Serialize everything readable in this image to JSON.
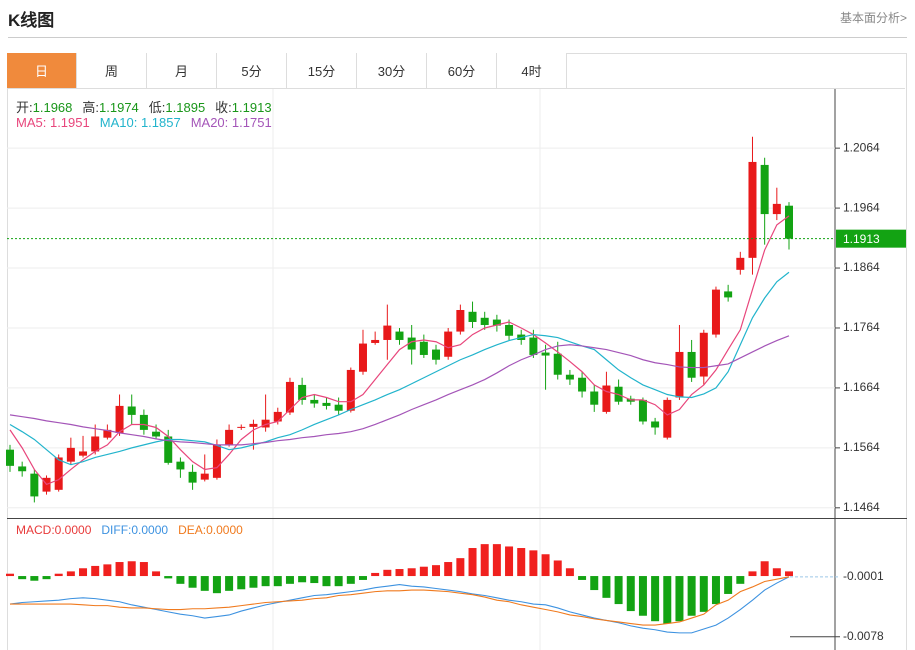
{
  "header": {
    "title": "K线图",
    "link": "基本面分析>"
  },
  "tabs": [
    "日",
    "周",
    "月",
    "5分",
    "15分",
    "30分",
    "60分",
    "4时"
  ],
  "active_tab": 0,
  "chart_data": [
    {
      "type": "candlestick",
      "up_color": "#e8191a",
      "down_color": "#13a313",
      "ylim": [
        1.1447,
        1.2161
      ],
      "yticks": [
        1.2064,
        1.1964,
        1.1864,
        1.1764,
        1.1664,
        1.1564,
        1.1464
      ],
      "grid": true,
      "ohlc_labels": [
        "开:",
        "高:",
        "低:",
        "收:"
      ],
      "info_value_color": "#1a961a",
      "last_price_color": "#13a313",
      "open": [
        1.1561,
        1.1533,
        1.1521,
        1.1491,
        1.1494,
        1.1541,
        1.1551,
        1.1558,
        1.1581,
        1.1589,
        1.1633,
        1.1619,
        1.1591,
        1.1583,
        1.1541,
        1.1524,
        1.1511,
        1.1514,
        1.1569,
        1.1598,
        1.1599,
        1.1598,
        1.1608,
        1.1623,
        1.1669,
        1.1644,
        1.1639,
        1.1636,
        1.1626,
        1.1691,
        1.1739,
        1.1744,
        1.1758,
        1.1748,
        1.1741,
        1.1728,
        1.1716,
        1.1758,
        1.1791,
        1.1781,
        1.1778,
        1.1769,
        1.1753,
        1.1748,
        1.1723,
        1.1721,
        1.1686,
        1.1681,
        1.1658,
        1.1624,
        1.1666,
        1.1646,
        1.1644,
        1.1608,
        1.1581,
        1.1648,
        1.1724,
        1.1683,
        1.1753,
        1.1825,
        1.1861,
        1.1881,
        1.2036,
        1.1954,
        1.1968
      ],
      "high": [
        1.1569,
        1.1541,
        1.1528,
        1.1518,
        1.1553,
        1.1581,
        1.1584,
        1.1603,
        1.1603,
        1.1653,
        1.1653,
        1.1628,
        1.1603,
        1.1594,
        1.1548,
        1.1536,
        1.1553,
        1.1578,
        1.1603,
        1.1603,
        1.1611,
        1.1653,
        1.1631,
        1.1681,
        1.1681,
        1.1653,
        1.1648,
        1.1648,
        1.1698,
        1.1761,
        1.1758,
        1.1803,
        1.1764,
        1.1769,
        1.1753,
        1.1736,
        1.1764,
        1.1803,
        1.1808,
        1.1791,
        1.1786,
        1.1778,
        1.1761,
        1.1761,
        1.1736,
        1.1741,
        1.1694,
        1.1691,
        1.1669,
        1.1691,
        1.1678,
        1.1651,
        1.1648,
        1.1614,
        1.1648,
        1.1769,
        1.1744,
        1.1761,
        1.1833,
        1.1836,
        1.1891,
        1.2083,
        1.2048,
        1.1998,
        1.1974
      ],
      "low": [
        1.1524,
        1.1516,
        1.1473,
        1.1486,
        1.1491,
        1.1536,
        1.1548,
        1.1553,
        1.1578,
        1.1584,
        1.1603,
        1.1586,
        1.1578,
        1.1536,
        1.1514,
        1.1494,
        1.1508,
        1.1511,
        1.1566,
        1.1594,
        1.1561,
        1.1591,
        1.1603,
        1.1619,
        1.1636,
        1.1631,
        1.1628,
        1.1619,
        1.1623,
        1.1686,
        1.1736,
        1.1711,
        1.1736,
        1.1703,
        1.1714,
        1.1703,
        1.1711,
        1.1753,
        1.1764,
        1.1761,
        1.1758,
        1.1744,
        1.1736,
        1.1714,
        1.1661,
        1.1678,
        1.1669,
        1.1648,
        1.1624,
        1.1621,
        1.1636,
        1.1636,
        1.1603,
        1.1586,
        1.1578,
        1.1644,
        1.1674,
        1.1669,
        1.1748,
        1.1808,
        1.1853,
        1.1853,
        1.1903,
        1.1944,
        1.1895
      ],
      "close": [
        1.1534,
        1.1525,
        1.1483,
        1.1514,
        1.1548,
        1.1564,
        1.1558,
        1.1583,
        1.1594,
        1.1634,
        1.1619,
        1.1594,
        1.1583,
        1.1539,
        1.1528,
        1.1506,
        1.1521,
        1.1569,
        1.1594,
        1.1599,
        1.1604,
        1.1611,
        1.1624,
        1.1674,
        1.1644,
        1.1638,
        1.1634,
        1.1626,
        1.1694,
        1.1738,
        1.1744,
        1.1768,
        1.1744,
        1.1728,
        1.1719,
        1.1711,
        1.1758,
        1.1794,
        1.1774,
        1.1769,
        1.1768,
        1.1751,
        1.1744,
        1.1719,
        1.1718,
        1.1686,
        1.1678,
        1.1658,
        1.1636,
        1.1668,
        1.1641,
        1.1641,
        1.1608,
        1.1598,
        1.1644,
        1.1724,
        1.1681,
        1.1756,
        1.1828,
        1.1815,
        1.1881,
        1.2041,
        1.1954,
        1.1971,
        1.1913
      ],
      "series": [
        {
          "name": "MA5:",
          "color": "#e8467c",
          "values": [
            1.1594,
            1.1564,
            1.1528,
            1.1503,
            1.1511,
            1.1528,
            1.1544,
            1.1558,
            1.1569,
            1.1591,
            1.1603,
            1.1603,
            1.1598,
            1.1583,
            1.1561,
            1.1541,
            1.1528,
            1.1531,
            1.1553,
            1.1578,
            1.1594,
            1.1603,
            1.1608,
            1.1628,
            1.1648,
            1.1653,
            1.1648,
            1.1641,
            1.1641,
            1.1653,
            1.1678,
            1.1703,
            1.1728,
            1.1741,
            1.1744,
            1.1741,
            1.1731,
            1.1736,
            1.1753,
            1.1764,
            1.1769,
            1.1774,
            1.1764,
            1.1753,
            1.1739,
            1.1724,
            1.1708,
            1.1691,
            1.1669,
            1.1658,
            1.1653,
            1.1644,
            1.1644,
            1.1636,
            1.1619,
            1.1628,
            1.1653,
            1.1669,
            1.1694,
            1.1728,
            1.1761,
            1.1828,
            1.1894,
            1.1936,
            1.1951
          ]
        },
        {
          "name": "MA10:",
          "color": "#22b4cc",
          "values": [
            1.1603,
            1.1591,
            1.1578,
            1.1561,
            1.1544,
            1.1536,
            1.1541,
            1.1548,
            1.1553,
            1.1558,
            1.1564,
            1.1569,
            1.1574,
            1.1578,
            1.1578,
            1.1576,
            1.1574,
            1.1568,
            1.1561,
            1.1564,
            1.1569,
            1.1574,
            1.1581,
            1.1586,
            1.1594,
            1.1603,
            1.1611,
            1.1619,
            1.1628,
            1.1636,
            1.1644,
            1.1653,
            1.1661,
            1.1671,
            1.1681,
            1.1691,
            1.1701,
            1.1711,
            1.1719,
            1.1728,
            1.1736,
            1.1743,
            1.1748,
            1.1753,
            1.1751,
            1.1748,
            1.1741,
            1.1734,
            1.1728,
            1.1711,
            1.1694,
            1.1681,
            1.1669,
            1.1661,
            1.1653,
            1.1649,
            1.1648,
            1.1654,
            1.1664,
            1.1691,
            1.1736,
            1.1781,
            1.1814,
            1.1841,
            1.1857
          ]
        },
        {
          "name": "MA20:",
          "color": "#a455b8",
          "values": [
            1.1619,
            1.1616,
            1.1613,
            1.1609,
            1.1606,
            1.1603,
            1.1599,
            1.1596,
            1.1593,
            1.1589,
            1.1586,
            1.1583,
            1.1579,
            1.1576,
            1.1574,
            1.1573,
            1.1571,
            1.1569,
            1.1569,
            1.1569,
            1.1571,
            1.1573,
            1.1576,
            1.1578,
            1.1581,
            1.1583,
            1.1586,
            1.1588,
            1.1591,
            1.1596,
            1.1603,
            1.1611,
            1.1619,
            1.1628,
            1.1636,
            1.1644,
            1.1653,
            1.1661,
            1.1669,
            1.1678,
            1.1689,
            1.1701,
            1.1711,
            1.1719,
            1.1728,
            1.1734,
            1.1736,
            1.1734,
            1.1731,
            1.1728,
            1.1723,
            1.1718,
            1.1711,
            1.1706,
            1.1703,
            1.1699,
            1.1698,
            1.1698,
            1.1701,
            1.1704,
            1.1714,
            1.1724,
            1.1734,
            1.1743,
            1.1751
          ]
        }
      ]
    },
    {
      "type": "macd",
      "ylim": [
        -0.0095,
        0.0072
      ],
      "yticks": [
        -0.0001,
        -0.0078
      ],
      "up_color": "#f0201e",
      "down_color": "#13a313",
      "histogram": {
        "name": "MACD:",
        "color": "#e83a3a",
        "legend_value": 0,
        "legend_value_label": "0.0000",
        "values": [
          0.0003,
          -0.0004,
          -0.0006,
          -0.0004,
          0.0003,
          0.0006,
          0.001,
          0.0013,
          0.0015,
          0.0018,
          0.0019,
          0.0018,
          0.0006,
          -0.0003,
          -0.001,
          -0.0015,
          -0.0019,
          -0.0022,
          -0.0019,
          -0.0017,
          -0.0015,
          -0.0013,
          -0.0013,
          -0.001,
          -0.0008,
          -0.0009,
          -0.0013,
          -0.0013,
          -0.001,
          -0.0005,
          0.0004,
          0.0008,
          0.0009,
          0.001,
          0.0012,
          0.0014,
          0.0018,
          0.0023,
          0.0036,
          0.0041,
          0.0041,
          0.0038,
          0.0036,
          0.0033,
          0.0028,
          0.002,
          0.001,
          -0.0005,
          -0.0018,
          -0.0028,
          -0.0036,
          -0.0045,
          -0.0051,
          -0.0058,
          -0.0061,
          -0.0058,
          -0.0051,
          -0.0046,
          -0.0036,
          -0.0023,
          -0.001,
          0.0006,
          0.0019,
          0.001,
          0.0006
        ]
      },
      "series": [
        {
          "name": "DIFF:",
          "color": "#3d92e0",
          "legend_value": 0,
          "legend_value_label": "0.0000",
          "values": [
            -0.0036,
            -0.0034,
            -0.0033,
            -0.0032,
            -0.0031,
            -0.0029,
            -0.0028,
            -0.0029,
            -0.0031,
            -0.0033,
            -0.0037,
            -0.004,
            -0.0043,
            -0.0046,
            -0.0049,
            -0.0051,
            -0.0054,
            -0.0052,
            -0.005,
            -0.0045,
            -0.0041,
            -0.0037,
            -0.0034,
            -0.0031,
            -0.0028,
            -0.0025,
            -0.0024,
            -0.0022,
            -0.002,
            -0.0018,
            -0.0015,
            -0.0013,
            -0.0011,
            -0.0013,
            -0.0014,
            -0.0016,
            -0.0018,
            -0.002,
            -0.0023,
            -0.0025,
            -0.0028,
            -0.0031,
            -0.0033,
            -0.0036,
            -0.0037,
            -0.0041,
            -0.0046,
            -0.005,
            -0.0054,
            -0.0057,
            -0.006,
            -0.0064,
            -0.0067,
            -0.0069,
            -0.0072,
            -0.0073,
            -0.0073,
            -0.0068,
            -0.0063,
            -0.0054,
            -0.0043,
            -0.0031,
            -0.0018,
            -0.0009,
            -0.0001
          ]
        },
        {
          "name": "DEA:",
          "color": "#f07a1e",
          "legend_value": 0,
          "legend_value_label": "0.0000",
          "values": [
            -0.0036,
            -0.0036,
            -0.0036,
            -0.0036,
            -0.0036,
            -0.0036,
            -0.0037,
            -0.0038,
            -0.0038,
            -0.004,
            -0.0041,
            -0.0041,
            -0.0042,
            -0.0043,
            -0.0043,
            -0.0042,
            -0.0042,
            -0.0041,
            -0.004,
            -0.0038,
            -0.0036,
            -0.0034,
            -0.0033,
            -0.0032,
            -0.0031,
            -0.0029,
            -0.0028,
            -0.0025,
            -0.0024,
            -0.0022,
            -0.002,
            -0.0019,
            -0.0019,
            -0.0018,
            -0.0018,
            -0.0019,
            -0.002,
            -0.0022,
            -0.0024,
            -0.0027,
            -0.0031,
            -0.0033,
            -0.0037,
            -0.004,
            -0.0043,
            -0.0046,
            -0.005,
            -0.0052,
            -0.0055,
            -0.0057,
            -0.0059,
            -0.0061,
            -0.0063,
            -0.0063,
            -0.0061,
            -0.0059,
            -0.0054,
            -0.0049,
            -0.0037,
            -0.0031,
            -0.002,
            -0.0014,
            -0.0007,
            -0.0004,
            -0.0001
          ]
        }
      ]
    }
  ]
}
